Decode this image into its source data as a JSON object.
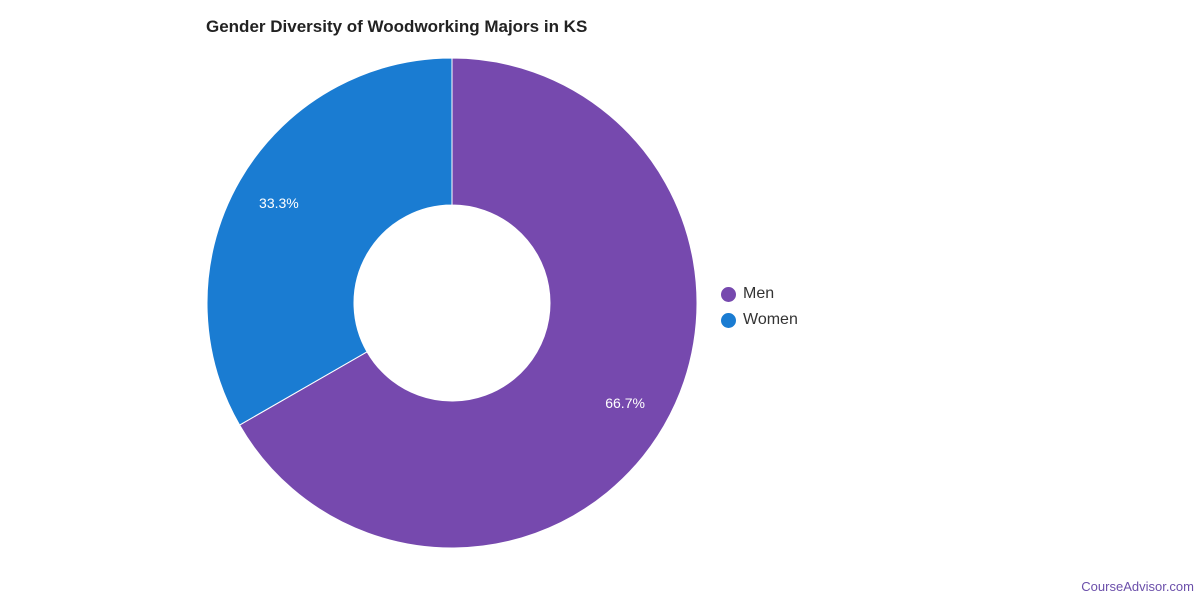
{
  "chart_data": {
    "type": "pie",
    "variant": "donut",
    "title": "Gender Diversity of Woodworking Majors in KS",
    "categories": [
      "Men",
      "Women"
    ],
    "values": [
      66.7,
      33.3
    ],
    "labels": [
      "66.7%",
      "33.3%"
    ],
    "colors": [
      "#7649ae",
      "#1a7cd2"
    ],
    "legend": "right"
  },
  "source_text": "CourseAdvisor.com"
}
